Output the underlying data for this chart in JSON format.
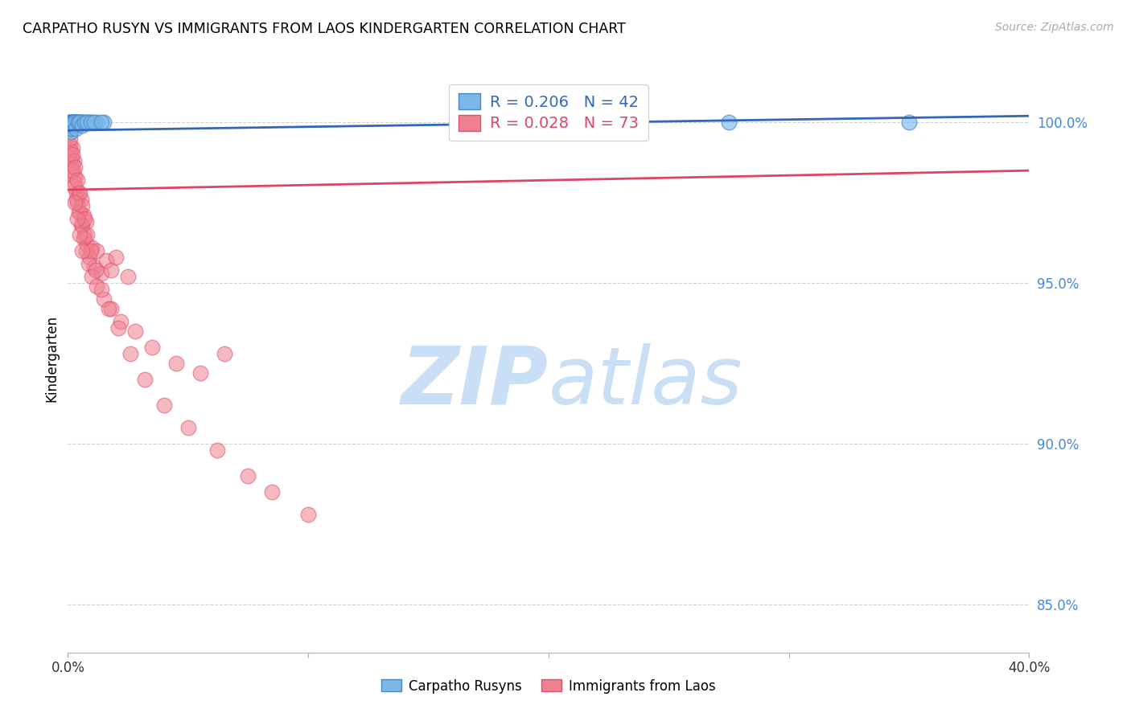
{
  "title": "CARPATHO RUSYN VS IMMIGRANTS FROM LAOS KINDERGARTEN CORRELATION CHART",
  "source": "Source: ZipAtlas.com",
  "ylabel": "Kindergarten",
  "ytick_labels": [
    "85.0%",
    "90.0%",
    "95.0%",
    "100.0%"
  ],
  "ytick_values": [
    85.0,
    90.0,
    95.0,
    100.0
  ],
  "legend_blue_label": "Carpatho Rusyns",
  "legend_pink_label": "Immigrants from Laos",
  "legend_blue_r": "R = 0.206",
  "legend_blue_n": "N = 42",
  "legend_pink_r": "R = 0.028",
  "legend_pink_n": "N = 73",
  "blue_scatter_color": "#7BB8E8",
  "blue_edge_color": "#4488CC",
  "pink_scatter_color": "#F08090",
  "pink_edge_color": "#E05070",
  "blue_line_color": "#3366BB",
  "pink_line_color": "#DD4466",
  "watermark_color": "#C8DFF5",
  "blue_x": [
    0.05,
    0.08,
    0.1,
    0.12,
    0.15,
    0.18,
    0.2,
    0.22,
    0.25,
    0.28,
    0.3,
    0.32,
    0.35,
    0.38,
    0.4,
    0.45,
    0.5,
    0.55,
    0.6,
    0.7,
    0.8,
    0.9,
    1.0,
    1.2,
    1.5,
    0.06,
    0.09,
    0.13,
    0.17,
    0.23,
    0.27,
    0.33,
    0.42,
    0.48,
    0.58,
    0.68,
    0.78,
    0.95,
    1.1,
    1.4,
    27.5,
    35.0
  ],
  "blue_y": [
    100.0,
    100.0,
    100.0,
    100.0,
    100.0,
    100.0,
    100.0,
    100.0,
    100.0,
    100.0,
    100.0,
    100.0,
    100.0,
    100.0,
    100.0,
    100.0,
    100.0,
    100.0,
    100.0,
    100.0,
    100.0,
    100.0,
    100.0,
    100.0,
    100.0,
    99.8,
    99.9,
    99.7,
    99.8,
    99.9,
    100.0,
    99.8,
    100.0,
    100.0,
    99.9,
    100.0,
    100.0,
    100.0,
    100.0,
    100.0,
    100.0,
    100.0
  ],
  "pink_x": [
    0.05,
    0.08,
    0.1,
    0.12,
    0.15,
    0.18,
    0.2,
    0.22,
    0.25,
    0.28,
    0.3,
    0.35,
    0.4,
    0.45,
    0.5,
    0.55,
    0.6,
    0.65,
    0.7,
    0.75,
    0.8,
    0.9,
    1.0,
    1.1,
    1.2,
    1.4,
    1.6,
    1.8,
    2.0,
    2.5,
    0.15,
    0.25,
    0.35,
    0.45,
    0.55,
    0.65,
    0.75,
    0.85,
    1.0,
    1.2,
    1.5,
    1.8,
    2.2,
    2.8,
    3.5,
    4.5,
    5.5,
    6.5,
    0.1,
    0.2,
    0.3,
    0.4,
    0.5,
    0.6,
    0.7,
    0.8,
    0.95,
    1.15,
    1.4,
    1.7,
    2.1,
    2.6,
    3.2,
    4.0,
    5.0,
    6.2,
    7.5,
    8.5,
    10.0,
    0.28,
    0.38,
    0.48,
    0.58
  ],
  "pink_y": [
    99.2,
    99.0,
    99.3,
    99.1,
    98.9,
    99.2,
    98.7,
    98.5,
    98.8,
    98.3,
    98.1,
    97.8,
    97.5,
    97.8,
    97.2,
    97.6,
    96.8,
    97.1,
    96.5,
    96.9,
    96.2,
    95.8,
    96.1,
    95.5,
    96.0,
    95.3,
    95.7,
    95.4,
    95.8,
    95.2,
    98.5,
    98.0,
    97.6,
    97.2,
    96.8,
    96.4,
    96.0,
    95.6,
    95.2,
    94.9,
    94.5,
    94.2,
    93.8,
    93.5,
    93.0,
    92.5,
    92.2,
    92.8,
    99.5,
    99.0,
    98.6,
    98.2,
    97.8,
    97.4,
    97.0,
    96.5,
    96.0,
    95.4,
    94.8,
    94.2,
    93.6,
    92.8,
    92.0,
    91.2,
    90.5,
    89.8,
    89.0,
    88.5,
    87.8,
    97.5,
    97.0,
    96.5,
    96.0
  ],
  "xmin": 0.0,
  "xmax": 40.0,
  "ymin": 83.5,
  "ymax": 101.8,
  "blue_trend_x": [
    0.0,
    40.0
  ],
  "blue_trend_y": [
    99.75,
    100.2
  ],
  "pink_trend_x": [
    0.0,
    40.0
  ],
  "pink_trend_y": [
    97.9,
    98.5
  ]
}
